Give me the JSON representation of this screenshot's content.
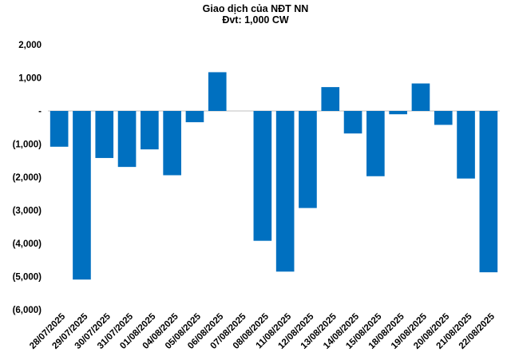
{
  "chart_data": {
    "type": "bar",
    "title": "Giao dịch của NĐT NN",
    "subtitle": "Đvt: 1,000 CW",
    "xlabel": "",
    "ylabel": "",
    "ylim": [
      -6000,
      2000
    ],
    "yticks": [
      2000,
      1000,
      0,
      -1000,
      -2000,
      -3000,
      -4000,
      -5000,
      -6000
    ],
    "ytick_labels": [
      "2,000",
      "1,000",
      "-",
      "(1,000)",
      "(2,000)",
      "(3,000)",
      "(4,000)",
      "(5,000)",
      "(6,000)"
    ],
    "grid": false,
    "legend": "none",
    "bar_color": "#0070C0",
    "categories": [
      "28/07/2025",
      "29/07/2025",
      "30/07/2025",
      "31/07/2025",
      "01/08/2025",
      "04/08/2025",
      "05/08/2025",
      "06/08/2025",
      "07/08/2025",
      "08/08/2025",
      "11/08/2025",
      "12/08/2025",
      "13/08/2025",
      "14/08/2025",
      "15/08/2025",
      "18/08/2025",
      "19/08/2025",
      "20/08/2025",
      "21/08/2025",
      "22/08/2025"
    ],
    "values": [
      -1080,
      -5090,
      -1420,
      -1690,
      -1160,
      -1940,
      -340,
      1170,
      0,
      -3920,
      -4850,
      -2930,
      720,
      -680,
      -1970,
      -100,
      830,
      -420,
      -2040,
      -4870
    ]
  }
}
